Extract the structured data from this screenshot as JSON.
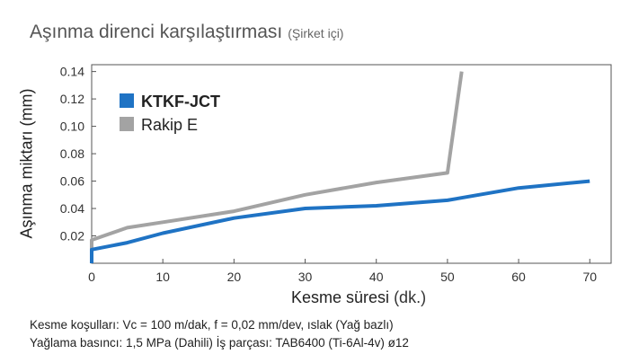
{
  "header": {
    "title": "Aşınma direnci karşılaştırması",
    "subtitle": "(Şirket içi)"
  },
  "chart_data": {
    "type": "line",
    "xlabel": "Kesme süresi",
    "xlabel_unit": "(dk.)",
    "ylabel": "Aşınma miktarı (mm)",
    "xlim": [
      0,
      73
    ],
    "ylim": [
      0,
      0.145
    ],
    "x_ticks": [
      0,
      10,
      20,
      30,
      40,
      50,
      60,
      70
    ],
    "y_ticks": [
      0.02,
      0.04,
      0.06,
      0.08,
      0.1,
      0.12,
      0.14
    ],
    "y_tick_labels": [
      "0.02",
      "0.04",
      "0.06",
      "0.08",
      "0.10",
      "0.12",
      "0.14"
    ],
    "grid": false,
    "legend_position": "top-left",
    "series": [
      {
        "name": "KTKF-JCT",
        "color": "#1f73c4",
        "bold": true,
        "points": [
          [
            0,
            0
          ],
          [
            0,
            0.01
          ],
          [
            5,
            0.015
          ],
          [
            10,
            0.022
          ],
          [
            20,
            0.033
          ],
          [
            30,
            0.04
          ],
          [
            40,
            0.042
          ],
          [
            50,
            0.046
          ],
          [
            60,
            0.055
          ],
          [
            70,
            0.06
          ]
        ]
      },
      {
        "name": "Rakip E",
        "color": "#a3a3a3",
        "bold": false,
        "points": [
          [
            0,
            0
          ],
          [
            0,
            0.017
          ],
          [
            5,
            0.026
          ],
          [
            10,
            0.03
          ],
          [
            20,
            0.038
          ],
          [
            30,
            0.05
          ],
          [
            40,
            0.059
          ],
          [
            50,
            0.066
          ],
          [
            52,
            0.14
          ]
        ]
      }
    ]
  },
  "notes": {
    "line1": "Kesme koşulları: Vc = 100 m/dak, f = 0,02 mm/dev, ıslak (Yağ bazlı)",
    "line2": "Yağlama basıncı: 1,5 MPa (Dahili) İş parçası: TAB6400 (Ti-6Al-4v) ø12"
  }
}
